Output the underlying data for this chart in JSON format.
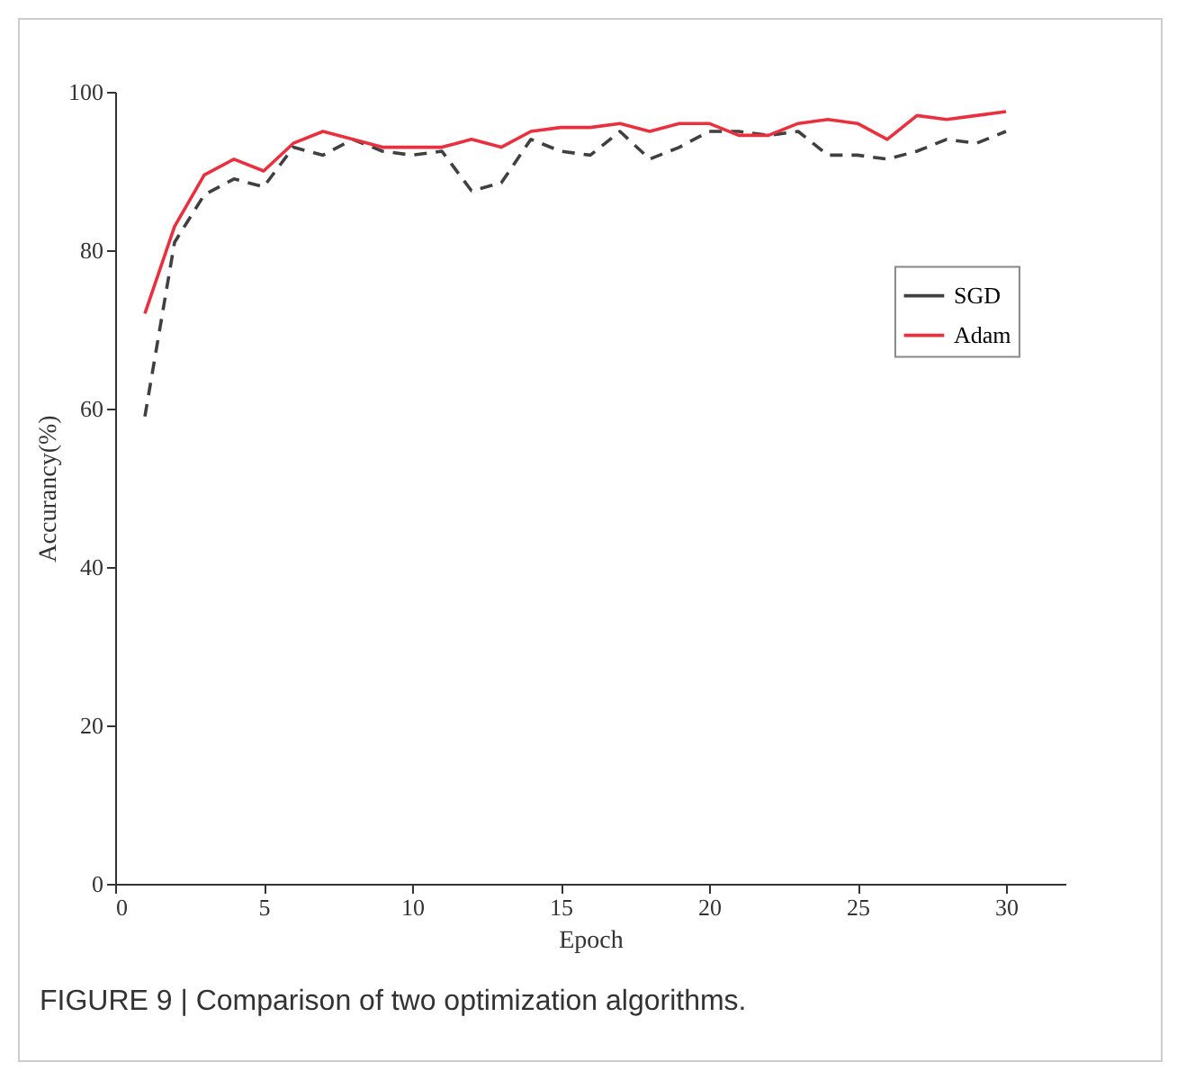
{
  "chart_data": {
    "type": "line",
    "xlabel": "Epoch",
    "ylabel": "Accurancy(%)",
    "x": [
      1,
      2,
      3,
      4,
      5,
      6,
      7,
      8,
      9,
      10,
      11,
      12,
      13,
      14,
      15,
      16,
      17,
      18,
      19,
      20,
      21,
      22,
      23,
      24,
      25,
      26,
      27,
      28,
      29,
      30
    ],
    "series": [
      {
        "name": "SGD",
        "color": "#404040",
        "line_style": "dashed",
        "values": [
          59,
          81,
          87,
          89,
          88,
          93,
          92,
          94,
          92.5,
          92,
          92.5,
          87.5,
          88.5,
          94,
          92.5,
          92,
          95,
          91.5,
          93,
          95,
          95,
          94.5,
          95,
          92,
          92,
          91.5,
          92.5,
          94,
          93.5,
          95
        ]
      },
      {
        "name": "Adam",
        "color": "#e8303f",
        "line_style": "solid",
        "values": [
          72,
          83,
          89.5,
          91.5,
          90,
          93.5,
          95,
          94,
          93,
          93,
          93,
          94,
          93,
          95,
          95.5,
          95.5,
          96,
          95,
          96,
          96,
          94.5,
          94.5,
          96,
          96.5,
          96,
          94,
          97,
          96.5,
          97,
          97.5
        ]
      }
    ],
    "xlim": [
      0,
      32
    ],
    "xticks": [
      0,
      5,
      10,
      15,
      20,
      25,
      30
    ],
    "ylim": [
      0,
      100
    ],
    "yticks": [
      0,
      20,
      40,
      60,
      80,
      100
    ],
    "grid": false,
    "legend": "right",
    "marker": "none",
    "annotations": [
      "FIGURE 9 | Comparison of two optimization algorithms."
    ]
  }
}
